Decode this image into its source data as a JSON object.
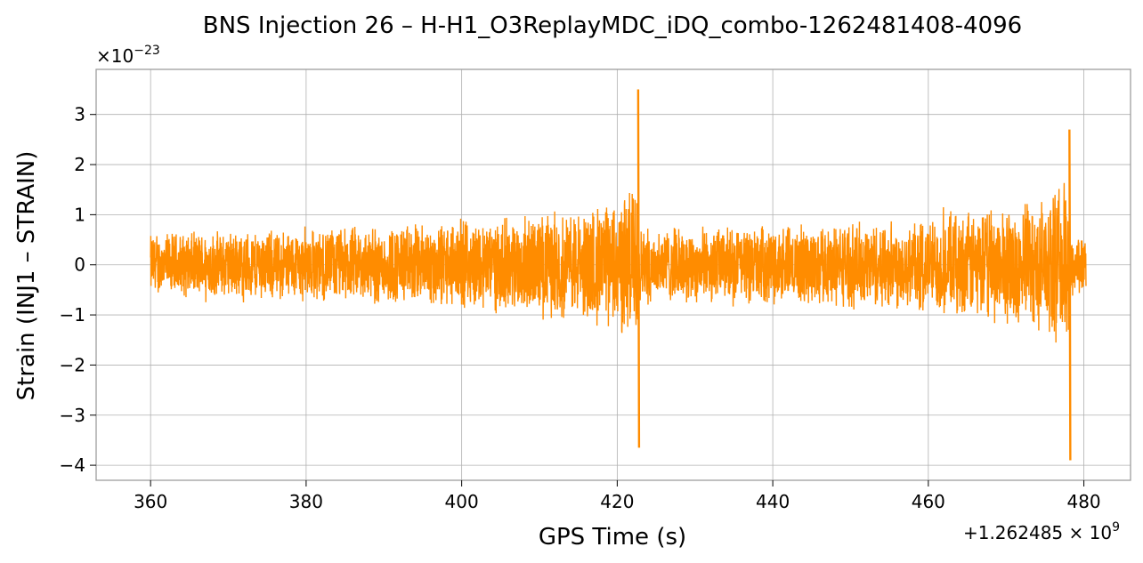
{
  "chart_data": {
    "type": "line",
    "title": "BNS Injection 26 – H-H1_O3ReplayMDC_iDQ_combo-1262481408-4096",
    "xlabel": "GPS Time (s)",
    "ylabel": "Strain (INJ1 – STRAIN)",
    "y_multiplier_label": "×10",
    "y_multiplier_exponent": "−23",
    "x_offset_label": "+1.262485 × 10",
    "x_offset_exponent": "9",
    "xlim": [
      353,
      486
    ],
    "ylim": [
      -4.3,
      3.9
    ],
    "x_ticks": [
      360,
      380,
      400,
      420,
      440,
      460,
      480
    ],
    "x_tick_labels": [
      "360",
      "380",
      "400",
      "420",
      "440",
      "460",
      "480"
    ],
    "y_ticks": [
      -4,
      -3,
      -2,
      -1,
      0,
      1,
      2,
      3
    ],
    "y_tick_labels": [
      "−4",
      "−3",
      "−2",
      "−1",
      "0",
      "1",
      "2",
      "3"
    ],
    "grid": true,
    "line_color": "#ff8c00",
    "series": [
      {
        "x_range": [
          360,
          480.3
        ],
        "envelope": [
          {
            "x": 360,
            "amp": 0.68
          },
          {
            "x": 380,
            "amp": 0.78
          },
          {
            "x": 395,
            "amp": 0.9
          },
          {
            "x": 405,
            "amp": 1.0
          },
          {
            "x": 415,
            "amp": 1.15
          },
          {
            "x": 420,
            "amp": 1.4
          },
          {
            "x": 422.7,
            "amp": 1.9
          },
          {
            "x": 423,
            "amp": 0.8
          },
          {
            "x": 440,
            "amp": 0.82
          },
          {
            "x": 460,
            "amp": 1.0
          },
          {
            "x": 475,
            "amp": 1.4
          },
          {
            "x": 478,
            "amp": 1.8
          },
          {
            "x": 478.4,
            "amp": 0.75
          },
          {
            "x": 480.3,
            "amp": 0.6
          }
        ],
        "spikes": [
          {
            "x": 422.75,
            "max": 3.5,
            "min": -3.65
          },
          {
            "x": 478.2,
            "max": 2.7,
            "min": -3.9
          }
        ]
      }
    ]
  }
}
